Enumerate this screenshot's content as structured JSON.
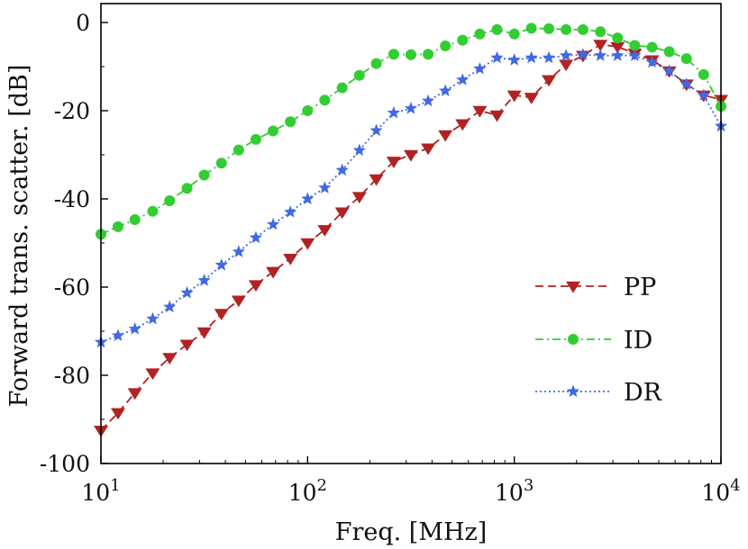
{
  "chart_data": {
    "type": "line",
    "title": "",
    "xlabel": "Freq. [MHz]",
    "ylabel": "Forward trans. scatter. [dB]",
    "xscale": "log",
    "xlim": [
      10,
      10000
    ],
    "ylim": [
      -100,
      0
    ],
    "x_ticks": [
      {
        "value": 10,
        "base": "10",
        "exp": "1"
      },
      {
        "value": 100,
        "base": "10",
        "exp": "2"
      },
      {
        "value": 1000,
        "base": "10",
        "exp": "3"
      },
      {
        "value": 10000,
        "base": "10",
        "exp": "4"
      }
    ],
    "y_ticks": [
      {
        "value": 0,
        "label": "0"
      },
      {
        "value": -20,
        "label": "-20"
      },
      {
        "value": -40,
        "label": "-40"
      },
      {
        "value": -60,
        "label": "-60"
      },
      {
        "value": -80,
        "label": "-80"
      },
      {
        "value": -100,
        "label": "-100"
      }
    ],
    "grid": false,
    "legend_position": "lower-right",
    "x": [
      10,
      12.1,
      14.6,
      17.8,
      21.5,
      26.1,
      31.6,
      38.3,
      46.4,
      56.2,
      68.1,
      82.5,
      100,
      121,
      147,
      178,
      215,
      261,
      316,
      383,
      464,
      562,
      681,
      825,
      1000,
      1210,
      1470,
      1780,
      2150,
      2610,
      3160,
      3830,
      4640,
      5620,
      6810,
      8250,
      10000
    ],
    "series": [
      {
        "name": "PP",
        "color": "#b22222",
        "line_style": "dashed",
        "marker": "triangle-down",
        "values": [
          -92.5,
          -88.5,
          -84,
          -79.5,
          -76,
          -73,
          -70.2,
          -66,
          -63,
          -59.5,
          -56.5,
          -53.5,
          -50,
          -47,
          -43,
          -39.5,
          -35.5,
          -31.5,
          -30,
          -28.5,
          -25.5,
          -23,
          -20,
          -21,
          -16.5,
          -17,
          -13,
          -9.5,
          -7.5,
          -5,
          -5.5,
          -7,
          -8.5,
          -11,
          -14,
          -16.5,
          -17.5
        ]
      },
      {
        "name": "ID",
        "color": "#32cd32",
        "line_style": "dashdot",
        "marker": "circle",
        "values": [
          -48,
          -46.3,
          -44.7,
          -42.8,
          -40.4,
          -37.6,
          -34.6,
          -31.9,
          -28.9,
          -26.5,
          -24.6,
          -22.5,
          -20,
          -17.6,
          -14.8,
          -12,
          -9.3,
          -7.2,
          -7.3,
          -7.2,
          -5.3,
          -4,
          -2.6,
          -1.6,
          -2.6,
          -1.3,
          -1.4,
          -1.6,
          -1.6,
          -2.1,
          -3.5,
          -5.2,
          -5.6,
          -6.6,
          -8.2,
          -11.8,
          -19
        ]
      },
      {
        "name": "DR",
        "color": "#4169e1",
        "line_style": "dotted",
        "marker": "star",
        "values": [
          -72.5,
          -71,
          -69.5,
          -67.2,
          -64.5,
          -61.3,
          -58.5,
          -55,
          -52,
          -48.8,
          -45.8,
          -43,
          -40,
          -37.5,
          -33.5,
          -29,
          -24.5,
          -20.5,
          -19.5,
          -17.8,
          -15.5,
          -13,
          -10.5,
          -8,
          -8.5,
          -8,
          -8,
          -7.5,
          -7.3,
          -7.5,
          -7.5,
          -7.5,
          -9,
          -11,
          -14,
          -16.5,
          -23.5
        ]
      }
    ]
  }
}
